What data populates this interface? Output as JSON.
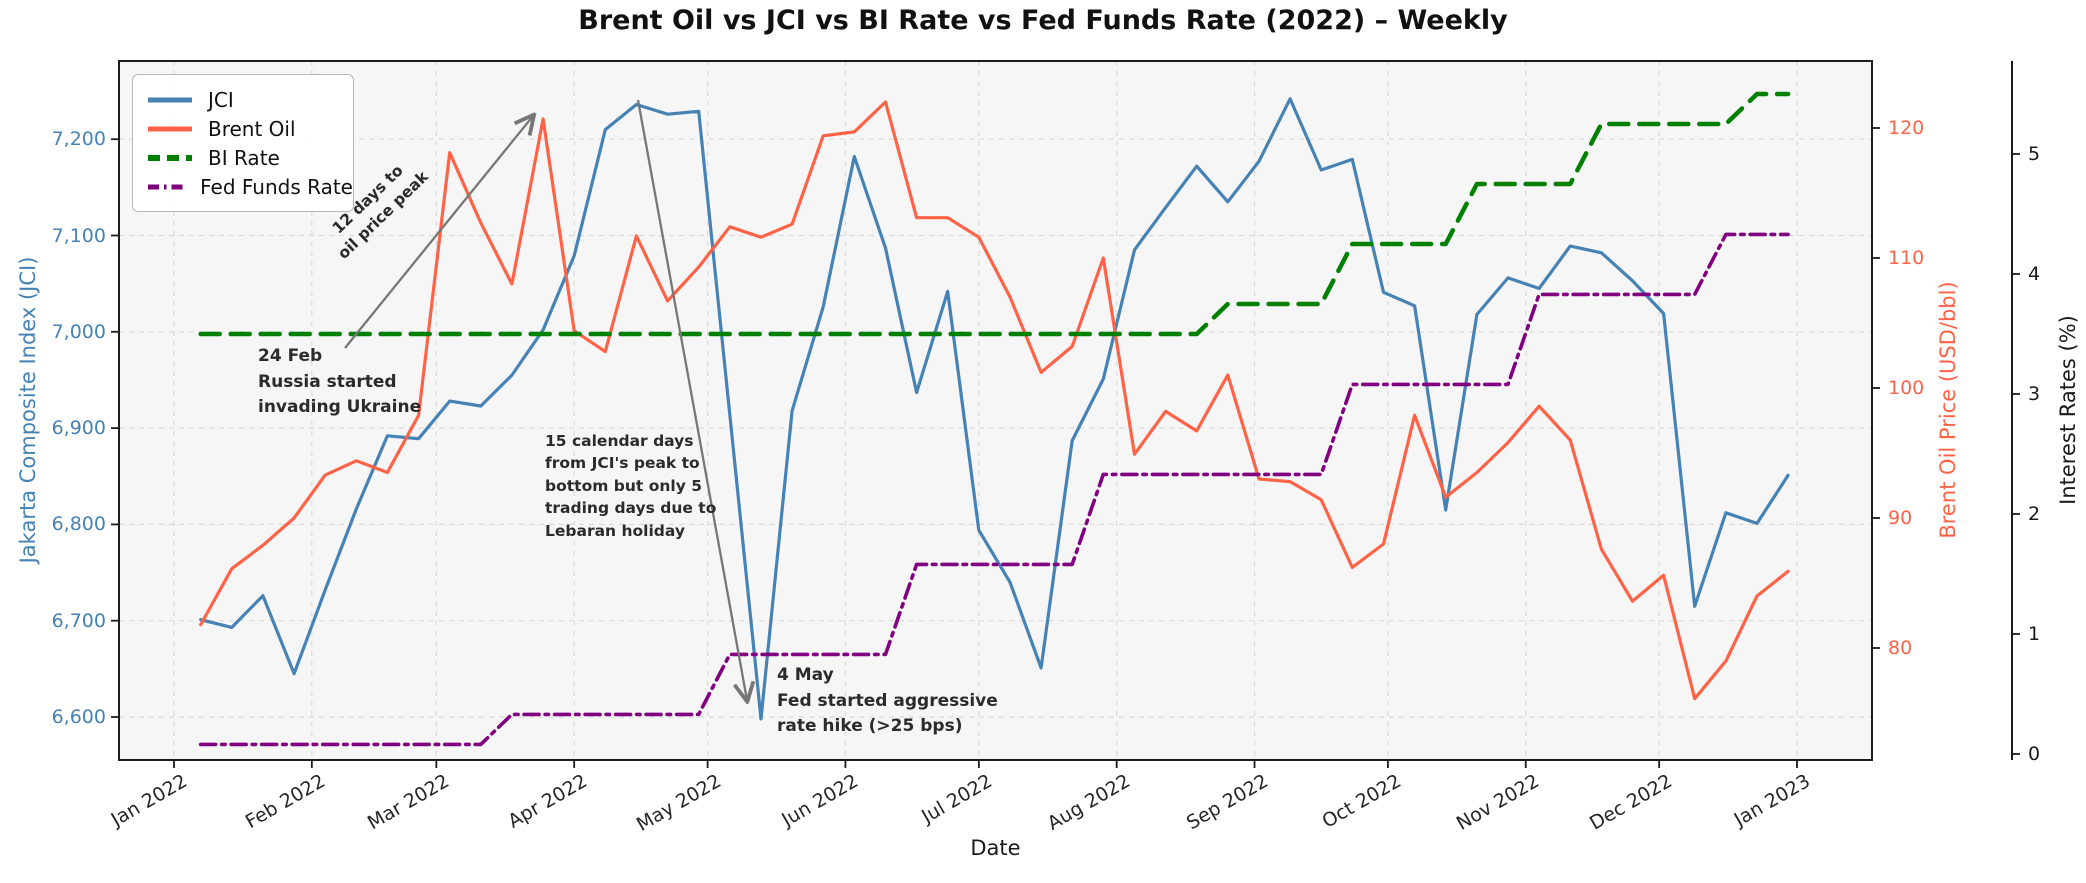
{
  "title": "Brent Oil vs JCI vs BI Rate vs Fed Funds Rate (2022) – Weekly",
  "axes": {
    "x": {
      "label": "Date",
      "tick_labels": [
        "Jan 2022",
        "Feb 2022",
        "Mar 2022",
        "Apr 2022",
        "May 2022",
        "Jun 2022",
        "Jul 2022",
        "Aug 2022",
        "Sep 2022",
        "Oct 2022",
        "Nov 2022",
        "Dec 2022",
        "Jan 2023"
      ]
    },
    "y_left": {
      "label": "Jakarta Composite Index (JCI)",
      "color": "#4682B4",
      "tick_labels": [
        "6,600",
        "6,700",
        "6,800",
        "6,900",
        "7,000",
        "7,100",
        "7,200"
      ]
    },
    "y_brent": {
      "label": "Brent Oil Price (USD/bbl)",
      "color": "#FF6347",
      "tick_labels": [
        "80",
        "90",
        "100",
        "110",
        "120"
      ]
    },
    "y_rates": {
      "label": "Interest Rates (%)",
      "color": "#1a1a1a",
      "tick_labels": [
        "0",
        "1",
        "2",
        "3",
        "4",
        "5"
      ]
    }
  },
  "legend": {
    "items": [
      {
        "label": "JCI",
        "color": "#4682B4",
        "dash": "solid"
      },
      {
        "label": "Brent Oil",
        "color": "#FF6347",
        "dash": "solid"
      },
      {
        "label": "BI Rate",
        "color": "#008000",
        "dash": "dashed"
      },
      {
        "label": "Fed Funds Rate",
        "color": "#800080",
        "dash": "dashdot"
      }
    ]
  },
  "annotations": {
    "oil_peak_arrow_label": "12 days to\noil price peak",
    "russia": "24 Feb\nRussia started\ninvading Ukraine",
    "lebaran": "15 calendar days\nfrom JCI's peak to\nbottom but only 5\ntrading days due to\nLebaran holiday",
    "fed_hike": "4 May\nFed started aggressive\nrate hike (>25 bps)"
  },
  "chart_data": {
    "type": "line",
    "title": "Brent Oil vs JCI vs BI Rate vs Fed Funds Rate (2022) – Weekly",
    "x_unit": "weekly Friday closes, 2022",
    "grid": true,
    "legend_position": "upper left",
    "week_dates": [
      "2022-01-07",
      "2022-01-14",
      "2022-01-21",
      "2022-01-28",
      "2022-02-04",
      "2022-02-11",
      "2022-02-18",
      "2022-02-25",
      "2022-03-04",
      "2022-03-11",
      "2022-03-18",
      "2022-03-25",
      "2022-04-01",
      "2022-04-08",
      "2022-04-14",
      "2022-04-22",
      "2022-04-29",
      "2022-05-06",
      "2022-05-13",
      "2022-05-20",
      "2022-05-27",
      "2022-06-03",
      "2022-06-10",
      "2022-06-17",
      "2022-06-24",
      "2022-07-01",
      "2022-07-08",
      "2022-07-15",
      "2022-07-22",
      "2022-07-29",
      "2022-08-05",
      "2022-08-12",
      "2022-08-19",
      "2022-08-26",
      "2022-09-02",
      "2022-09-09",
      "2022-09-16",
      "2022-09-23",
      "2022-09-30",
      "2022-10-07",
      "2022-10-14",
      "2022-10-21",
      "2022-10-28",
      "2022-11-04",
      "2022-11-11",
      "2022-11-18",
      "2022-11-25",
      "2022-12-02",
      "2022-12-09",
      "2022-12-16",
      "2022-12-23",
      "2022-12-30"
    ],
    "axis_ranges": {
      "jci": [
        6555,
        7290
      ],
      "brent": [
        76,
        124
      ],
      "rate": [
        0,
        5.8
      ]
    },
    "series": [
      {
        "name": "JCI",
        "axis": "jci",
        "color": "#4682B4",
        "style": "solid",
        "width": 3.2,
        "values": [
          6701,
          6693,
          6726,
          6645,
          6732,
          6816,
          6892,
          6889,
          6928,
          6923,
          6955,
          7002,
          7079,
          7210,
          7236,
          7226,
          7229,
          null,
          6598,
          6918,
          7026,
          7182,
          7087,
          6937,
          7042,
          6794,
          6740,
          6651,
          6887,
          6951,
          7085,
          7129,
          7172,
          7135,
          7177,
          7242,
          7168,
          7179,
          7041,
          7027,
          6815,
          7018,
          7056,
          7045,
          7089,
          7082,
          7053,
          7019,
          6715,
          6812,
          6801,
          6851
        ]
      },
      {
        "name": "Brent Oil",
        "axis": "brent",
        "color": "#FF6347",
        "style": "solid",
        "width": 3.2,
        "values": [
          81.8,
          86.1,
          87.9,
          90.0,
          93.3,
          94.4,
          93.5,
          97.9,
          118.1,
          112.7,
          108.0,
          120.7,
          104.4,
          102.8,
          111.7,
          106.7,
          109.3,
          112.4,
          111.6,
          112.6,
          119.4,
          119.7,
          122.0,
          113.1,
          113.1,
          111.6,
          107.0,
          101.2,
          103.2,
          110.0,
          94.9,
          98.2,
          96.7,
          101.0,
          93.0,
          92.8,
          91.4,
          86.2,
          88.0,
          97.9,
          91.6,
          93.5,
          95.8,
          98.6,
          96.0,
          87.6,
          83.6,
          85.6,
          76.1,
          79.0,
          84.0,
          85.9
        ]
      },
      {
        "name": "BI Rate",
        "axis": "rate",
        "color": "#008000",
        "style": "dashed",
        "width": 4.5,
        "values": [
          3.5,
          3.5,
          3.5,
          3.5,
          3.5,
          3.5,
          3.5,
          3.5,
          3.5,
          3.5,
          3.5,
          3.5,
          3.5,
          3.5,
          3.5,
          3.5,
          3.5,
          3.5,
          3.5,
          3.5,
          3.5,
          3.5,
          3.5,
          3.5,
          3.5,
          3.5,
          3.5,
          3.5,
          3.5,
          3.5,
          3.5,
          3.5,
          3.5,
          3.75,
          3.75,
          3.75,
          3.75,
          4.25,
          4.25,
          4.25,
          4.25,
          4.75,
          4.75,
          4.75,
          4.75,
          5.25,
          5.25,
          5.25,
          5.25,
          5.25,
          5.5,
          5.5
        ]
      },
      {
        "name": "Fed Funds Rate",
        "axis": "rate",
        "color": "#800080",
        "style": "dashdot",
        "width": 3.6,
        "values": [
          0.08,
          0.08,
          0.08,
          0.08,
          0.08,
          0.08,
          0.08,
          0.08,
          0.08,
          0.08,
          0.33,
          0.33,
          0.33,
          0.33,
          0.33,
          0.33,
          0.33,
          0.83,
          0.83,
          0.83,
          0.83,
          0.83,
          0.83,
          1.58,
          1.58,
          1.58,
          1.58,
          1.58,
          1.58,
          2.33,
          2.33,
          2.33,
          2.33,
          2.33,
          2.33,
          2.33,
          2.33,
          3.08,
          3.08,
          3.08,
          3.08,
          3.08,
          3.08,
          3.83,
          3.83,
          3.83,
          3.83,
          3.83,
          3.83,
          4.33,
          4.33,
          4.33
        ]
      }
    ]
  }
}
